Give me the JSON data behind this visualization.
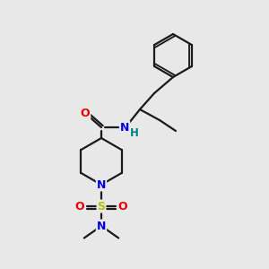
{
  "bg_color": "#e8e8e8",
  "line_color": "#1a1a1a",
  "bond_width": 1.6,
  "atom_colors": {
    "N": "#0000ee",
    "O": "#ee0000",
    "S": "#bbbb00",
    "H": "#008080",
    "C": "#1a1a1a"
  }
}
